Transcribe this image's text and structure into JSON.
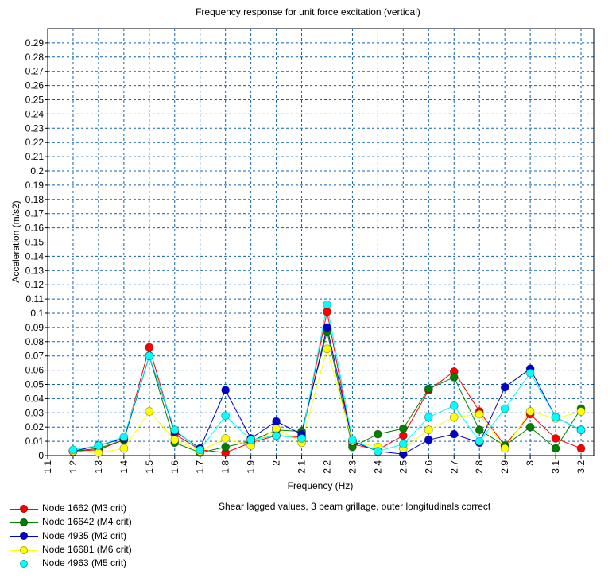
{
  "chart_data": {
    "type": "line",
    "title": "Frequency response for unit force excitation (vertical)",
    "xlabel": "Frequency (Hz)",
    "ylabel": "Acceleration (m/s2)",
    "xlim": [
      1.1,
      3.25
    ],
    "ylim": [
      0,
      0.3
    ],
    "xticks": [
      "1.1",
      "1.2",
      "1.3",
      "1.4",
      "1.5",
      "1.6",
      "1.7",
      "1.8",
      "1.9",
      "2",
      "2.1",
      "2.2",
      "2.3",
      "2.4",
      "2.5",
      "2.6",
      "2.7",
      "2.8",
      "2.9",
      "3",
      "3.1",
      "3.2"
    ],
    "yticks": [
      "0",
      "0.01",
      "0.02",
      "0.03",
      "0.04",
      "0.05",
      "0.06",
      "0.07",
      "0.08",
      "0.09",
      "0.1",
      "0.11",
      "0.12",
      "0.13",
      "0.14",
      "0.15",
      "0.16",
      "0.17",
      "0.18",
      "0.19",
      "0.2",
      "0.21",
      "0.22",
      "0.23",
      "0.24",
      "0.25",
      "0.26",
      "0.27",
      "0.28",
      "0.29"
    ],
    "grid": true,
    "legend_position": "bottom-left",
    "annotation": "Shear lagged values, 3 beam grillage, outer longitudinals correct",
    "x": [
      1.2,
      1.3,
      1.4,
      1.5,
      1.6,
      1.7,
      1.8,
      1.9,
      2.0,
      2.1,
      2.2,
      2.3,
      2.4,
      2.5,
      2.6,
      2.7,
      2.8,
      2.9,
      3.0,
      3.1,
      3.2
    ],
    "series": [
      {
        "name": "Node 1662 (M3 crit)",
        "color": "#ff0000",
        "values": [
          0.003,
          0.004,
          0.011,
          0.076,
          0.015,
          0.004,
          0.002,
          0.009,
          0.014,
          0.013,
          0.101,
          0.008,
          0.004,
          0.014,
          0.046,
          0.059,
          0.031,
          0.007,
          0.029,
          0.012,
          0.005
        ]
      },
      {
        "name": "Node 16642 (M4 crit)",
        "color": "#008000",
        "values": [
          0.003,
          0.005,
          0.011,
          0.07,
          0.009,
          0.002,
          0.006,
          0.01,
          0.018,
          0.017,
          0.087,
          0.006,
          0.015,
          0.019,
          0.047,
          0.055,
          0.018,
          0.007,
          0.02,
          0.005,
          0.033
        ]
      },
      {
        "name": "Node 4935 (M2 crit)",
        "color": "#0000cc",
        "values": [
          0.003,
          0.007,
          0.012,
          0.07,
          0.017,
          0.005,
          0.046,
          0.012,
          0.024,
          0.015,
          0.09,
          0.01,
          0.003,
          0.001,
          0.011,
          0.015,
          0.009,
          0.048,
          0.061,
          0.027,
          0.018
        ]
      },
      {
        "name": "Node 16681 (M6 crit)",
        "color": "#ffff00",
        "values": [
          0.003,
          0.002,
          0.005,
          0.031,
          0.011,
          0.003,
          0.012,
          0.007,
          0.019,
          0.009,
          0.075,
          0.01,
          0.006,
          0.005,
          0.018,
          0.027,
          0.029,
          0.005,
          0.031,
          0.026,
          0.031
        ]
      },
      {
        "name": "Node 4963 (M5 crit)",
        "color": "#00ffff",
        "values": [
          0.004,
          0.007,
          0.013,
          0.07,
          0.018,
          0.004,
          0.028,
          0.011,
          0.014,
          0.012,
          0.106,
          0.011,
          0.003,
          0.008,
          0.027,
          0.035,
          0.01,
          0.033,
          0.058,
          0.027,
          0.018
        ]
      }
    ]
  }
}
